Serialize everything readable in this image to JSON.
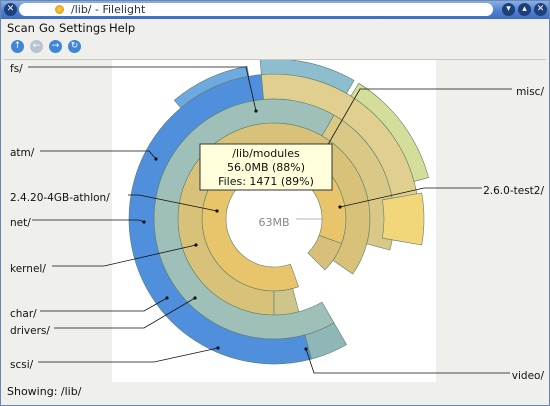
{
  "window": {
    "title": "/lib/ - Filelight",
    "close_glyph": "✕",
    "minimize_glyph": "▾",
    "maximize_glyph": "▴",
    "app_icon": "filelight-icon"
  },
  "menubar": {
    "items": [
      {
        "label": "Scan"
      },
      {
        "label": "Go"
      },
      {
        "label": "Settings"
      },
      {
        "label": "Help"
      }
    ]
  },
  "toolbar": {
    "buttons": [
      {
        "name": "up-icon",
        "glyph": "↑"
      },
      {
        "name": "back-icon",
        "glyph": "←"
      },
      {
        "name": "forward-icon",
        "glyph": "→"
      },
      {
        "name": "refresh-icon",
        "glyph": "↻"
      }
    ]
  },
  "chart": {
    "center_label": "63MB",
    "tooltip": {
      "path": "/lib/modules",
      "size": "56.0MB (88%)",
      "files": "Files: 1471 (89%)"
    },
    "labels": {
      "fs": "fs/",
      "atm": "atm/",
      "athlon": "2.4.20-4GB-athlon/",
      "net": "net/",
      "kernel": "kernel/",
      "char": "char/",
      "drivers": "drivers/",
      "scsi": "scsi/",
      "misc": "misc/",
      "test2": "2.6.0-test2/",
      "video": "video/"
    },
    "colors": {
      "gold": "#e8c46a",
      "olive": "#c8b86a",
      "teal": "#6fa6b8",
      "blue": "#4f8fdc"
    }
  },
  "status": {
    "text": "Showing: /lib/"
  }
}
